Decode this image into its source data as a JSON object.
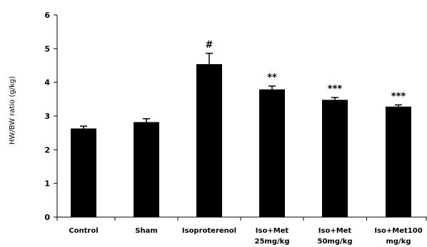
{
  "chart_data": {
    "type": "bar",
    "title": "",
    "xlabel": "",
    "ylabel": "HW/BW ratio (g/kg)",
    "ylim": [
      0,
      6
    ],
    "yticks": [
      0,
      1,
      2,
      3,
      4,
      5,
      6
    ],
    "grid": false,
    "legend": "none",
    "bar_color": "#000000",
    "categories": [
      [
        "Control"
      ],
      [
        "Sham"
      ],
      [
        "Isoproterenol"
      ],
      [
        "Iso+Met",
        "25mg/kg"
      ],
      [
        "Iso+Met",
        "50mg/kg"
      ],
      [
        "Iso+Met100",
        "mg/kg"
      ]
    ],
    "values": [
      2.63,
      2.82,
      4.54,
      3.79,
      3.48,
      3.28
    ],
    "errors": [
      0.07,
      0.1,
      0.32,
      0.1,
      0.07,
      0.05
    ],
    "annotations": [
      "",
      "",
      "#",
      "**",
      "***",
      "***"
    ]
  }
}
